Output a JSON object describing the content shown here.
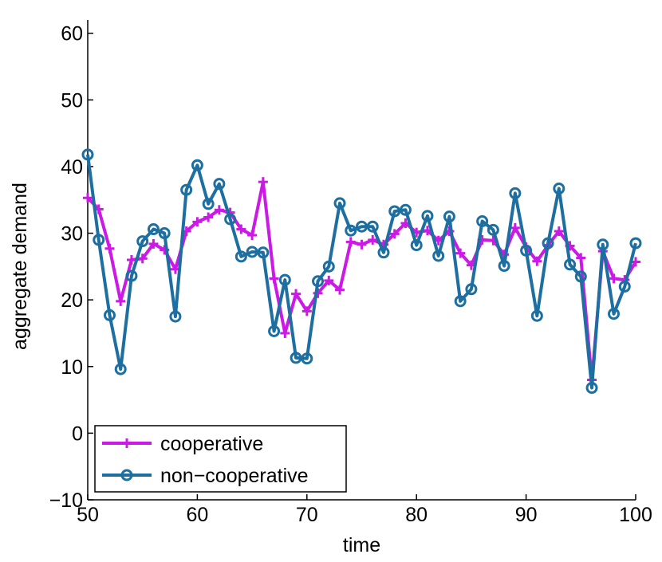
{
  "chart_data": {
    "type": "line",
    "xlabel": "time",
    "ylabel": "aggregate demand",
    "xlim": [
      50,
      100
    ],
    "ylim": [
      -10,
      62
    ],
    "xticks": [
      50,
      60,
      70,
      80,
      90,
      100
    ],
    "yticks": [
      -10,
      0,
      10,
      20,
      30,
      40,
      50,
      60
    ],
    "grid": false,
    "legend_position": "bottom-left",
    "x": [
      50,
      51,
      52,
      53,
      54,
      55,
      56,
      57,
      58,
      59,
      60,
      61,
      62,
      63,
      64,
      65,
      66,
      67,
      68,
      69,
      70,
      71,
      72,
      73,
      74,
      75,
      76,
      77,
      78,
      79,
      80,
      81,
      82,
      83,
      84,
      85,
      86,
      87,
      88,
      89,
      90,
      91,
      92,
      93,
      94,
      95,
      96,
      97,
      98,
      99,
      100
    ],
    "series": [
      {
        "name": "cooperative",
        "color": "#cc1ae6",
        "marker": "plus",
        "values": [
          35.3,
          33.6,
          27.7,
          19.8,
          26.0,
          26.2,
          28.4,
          27.5,
          24.6,
          30.3,
          31.7,
          32.4,
          33.5,
          33.1,
          30.6,
          29.7,
          37.7,
          23.2,
          15.0,
          20.9,
          18.3,
          21.0,
          22.9,
          21.5,
          28.7,
          28.3,
          29.0,
          28.3,
          29.9,
          31.5,
          30.1,
          30.4,
          28.9,
          30.3,
          27.0,
          25.2,
          29.0,
          28.9,
          26.8,
          30.8,
          27.9,
          25.8,
          28.2,
          30.3,
          28.1,
          26.3,
          8.0,
          27.3,
          23.2,
          23.0,
          25.7
        ]
      },
      {
        "name": "non−cooperative",
        "color": "#1d6fa1",
        "marker": "circle",
        "values": [
          41.8,
          29.0,
          17.7,
          9.6,
          23.6,
          28.8,
          30.6,
          30.0,
          17.5,
          36.5,
          40.2,
          34.4,
          37.4,
          32.1,
          26.5,
          27.2,
          27.1,
          15.3,
          23.0,
          11.3,
          11.2,
          22.8,
          25.0,
          34.5,
          30.4,
          31.0,
          31.0,
          27.1,
          33.3,
          33.5,
          28.2,
          32.6,
          26.6,
          32.5,
          19.8,
          21.6,
          31.8,
          30.5,
          25.1,
          36.0,
          27.4,
          17.6,
          28.5,
          36.7,
          25.3,
          23.5,
          6.8,
          28.3,
          17.9,
          22.0,
          28.5
        ]
      }
    ]
  }
}
